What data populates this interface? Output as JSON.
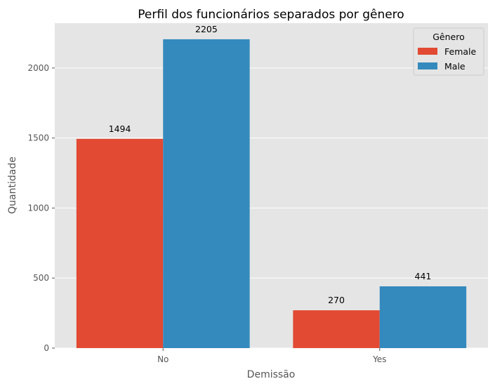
{
  "chart_data": {
    "type": "bar",
    "title": "Perfil dos funcionários separados por gênero",
    "xlabel": "Demissão",
    "ylabel": "Quantidade",
    "categories": [
      "No",
      "Yes"
    ],
    "series": [
      {
        "name": "Female",
        "values": [
          1494,
          270
        ],
        "color": "#E24A33"
      },
      {
        "name": "Male",
        "values": [
          2205,
          441
        ],
        "color": "#348ABD"
      }
    ],
    "ylim": [
      0,
      2320
    ],
    "yticks": [
      0,
      500,
      1000,
      1500,
      2000
    ],
    "grid": true,
    "legend": {
      "title": "Gênero",
      "placement": "upper-right"
    },
    "background": "#E5E5E5",
    "grid_color": "#FFFFFF"
  }
}
